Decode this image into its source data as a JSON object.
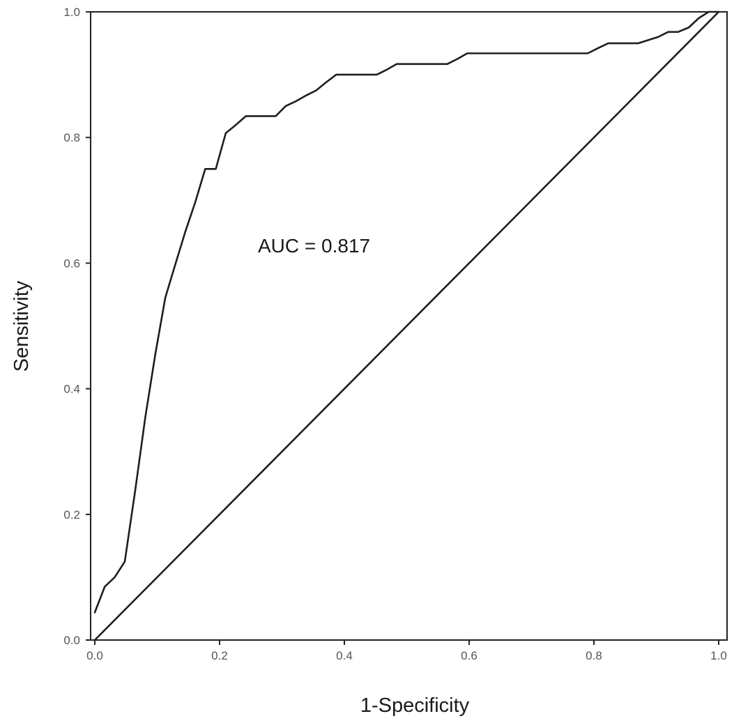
{
  "chart_data": {
    "type": "line",
    "title": "",
    "xlabel": "1-Specificity",
    "ylabel": "Sensitivity",
    "xlim": [
      0,
      1
    ],
    "ylim": [
      0,
      1
    ],
    "xticks": [
      "0.0",
      "0.2",
      "0.4",
      "0.6",
      "0.8",
      "1.0"
    ],
    "yticks": [
      "0.0",
      "0.2",
      "0.4",
      "0.6",
      "0.8",
      "1.0"
    ],
    "grid": false,
    "legend": "none",
    "annotation": "AUC = 0.817",
    "series": [
      {
        "x": [
          0.0,
          0.016,
          0.032,
          0.048,
          0.065,
          0.081,
          0.097,
          0.113,
          0.129,
          0.145,
          0.161,
          0.177,
          0.194,
          0.21,
          0.226,
          0.242,
          0.258,
          0.274,
          0.29,
          0.306,
          0.323,
          0.339,
          0.355,
          0.371,
          0.387,
          0.403,
          0.419,
          0.435,
          0.452,
          0.468,
          0.484,
          0.5,
          0.516,
          0.532,
          0.548,
          0.565,
          0.581,
          0.597,
          0.613,
          0.629,
          0.645,
          0.661,
          0.677,
          0.694,
          0.71,
          0.726,
          0.742,
          0.758,
          0.774,
          0.79,
          0.806,
          0.823,
          0.839,
          0.855,
          0.871,
          0.887,
          0.903,
          0.919,
          0.935,
          0.952,
          0.968,
          0.984,
          1.0
        ],
        "y": [
          0.044,
          0.085,
          0.1,
          0.125,
          0.24,
          0.355,
          0.455,
          0.545,
          0.598,
          0.65,
          0.697,
          0.75,
          0.75,
          0.807,
          0.82,
          0.834,
          0.834,
          0.834,
          0.834,
          0.85,
          0.858,
          0.867,
          0.875,
          0.888,
          0.9,
          0.9,
          0.9,
          0.9,
          0.9,
          0.908,
          0.917,
          0.917,
          0.917,
          0.917,
          0.917,
          0.917,
          0.925,
          0.934,
          0.934,
          0.934,
          0.934,
          0.934,
          0.934,
          0.934,
          0.934,
          0.934,
          0.934,
          0.934,
          0.934,
          0.934,
          0.942,
          0.95,
          0.95,
          0.95,
          0.95,
          0.955,
          0.96,
          0.968,
          0.968,
          0.975,
          0.99,
          1.0,
          1.0
        ]
      },
      {
        "x": [
          0,
          1
        ],
        "y": [
          0,
          1
        ]
      }
    ]
  }
}
